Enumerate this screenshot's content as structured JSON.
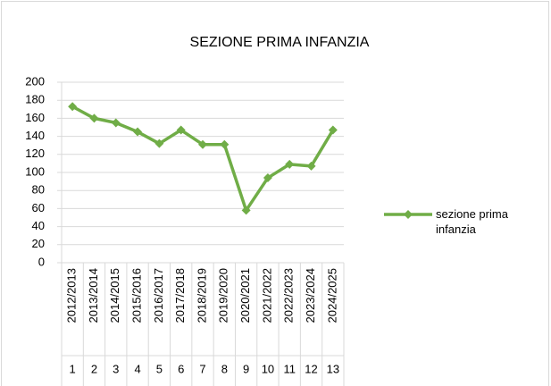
{
  "chart_data": {
    "type": "line",
    "title": "SEZIONE PRIMA INFANZIA",
    "categories": [
      "2012/2013",
      "2013/2014",
      "2014/2015",
      "2015/2016",
      "2016/2017",
      "2017/2018",
      "2018/2019",
      "2019/2020",
      "2020/2021",
      "2021/2022",
      "2022/2023",
      "2023/2024",
      "2024/2025"
    ],
    "category_index": [
      1,
      2,
      3,
      4,
      5,
      6,
      7,
      8,
      9,
      10,
      11,
      12,
      13
    ],
    "series": [
      {
        "name": "sezione prima infanzia",
        "color": "#70ad47",
        "values": [
          173,
          160,
          155,
          145,
          132,
          147,
          131,
          131,
          58,
          94,
          109,
          107,
          147
        ]
      }
    ],
    "ylim": [
      0,
      200
    ],
    "yticks": [
      0,
      20,
      40,
      60,
      80,
      100,
      120,
      140,
      160,
      180,
      200
    ],
    "grid": true,
    "legend": "right"
  }
}
